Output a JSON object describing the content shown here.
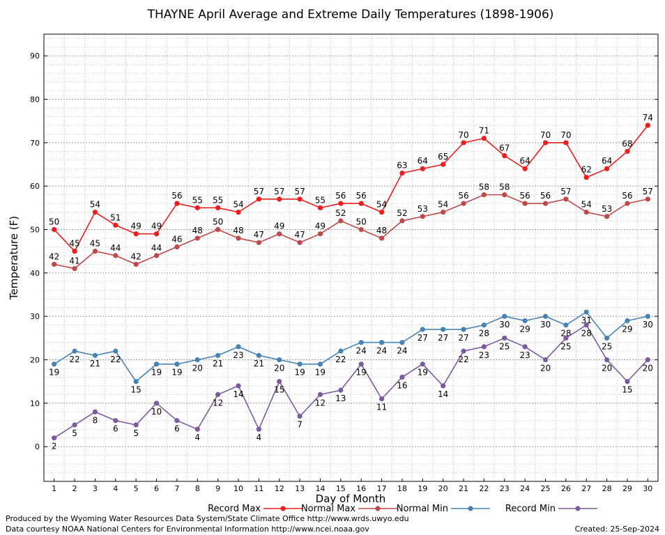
{
  "chart_data": {
    "type": "line",
    "title": "THAYNE April Average and Extreme Daily Temperatures (1898-1906)",
    "xlabel": "Day of Month",
    "ylabel": "Temperature (F)",
    "x": [
      1,
      2,
      3,
      4,
      5,
      6,
      7,
      8,
      9,
      10,
      11,
      12,
      13,
      14,
      15,
      16,
      17,
      18,
      19,
      20,
      21,
      22,
      23,
      24,
      25,
      26,
      27,
      28,
      29,
      30
    ],
    "xlim": [
      0.5,
      30.5
    ],
    "ylim": [
      -8,
      95
    ],
    "yticks": [
      0,
      10,
      20,
      30,
      40,
      50,
      60,
      70,
      80,
      90
    ],
    "grid": true,
    "legend_position": "bottom",
    "series": [
      {
        "name": "Record Max",
        "color": "#ee1c1c",
        "values": [
          50,
          45,
          54,
          51,
          49,
          49,
          56,
          55,
          55,
          54,
          57,
          57,
          57,
          55,
          56,
          56,
          54,
          63,
          64,
          65,
          70,
          71,
          67,
          64,
          70,
          70,
          62,
          64,
          68,
          74
        ]
      },
      {
        "name": "Normal Max",
        "color": "#c04848",
        "values": [
          42,
          41,
          45,
          44,
          42,
          44,
          46,
          48,
          50,
          48,
          47,
          49,
          47,
          49,
          52,
          50,
          48,
          52,
          53,
          54,
          56,
          58,
          58,
          56,
          56,
          57,
          54,
          53,
          56,
          57
        ]
      },
      {
        "name": "Normal Min",
        "color": "#4682b4",
        "values": [
          19,
          22,
          21,
          22,
          15,
          19,
          19,
          20,
          21,
          23,
          21,
          20,
          19,
          19,
          22,
          24,
          24,
          24,
          27,
          27,
          27,
          28,
          30,
          29,
          30,
          28,
          31,
          25,
          29,
          30
        ]
      },
      {
        "name": "Record Min",
        "color": "#7d5a9e",
        "values": [
          2,
          5,
          8,
          6,
          5,
          10,
          6,
          4,
          12,
          14,
          4,
          15,
          7,
          12,
          13,
          19,
          11,
          16,
          19,
          14,
          22,
          23,
          25,
          23,
          20,
          25,
          28,
          20,
          15,
          20
        ]
      }
    ]
  },
  "footer": {
    "produced_by": "Produced by the Wyoming Water Resources Data System/State Climate Office http://www.wrds.uwyo.edu",
    "courtesy": "Data courtesy NOAA National Centers for Environmental Information http://www.ncei.noaa.gov",
    "created": "Created:  25-Sep-2024"
  }
}
